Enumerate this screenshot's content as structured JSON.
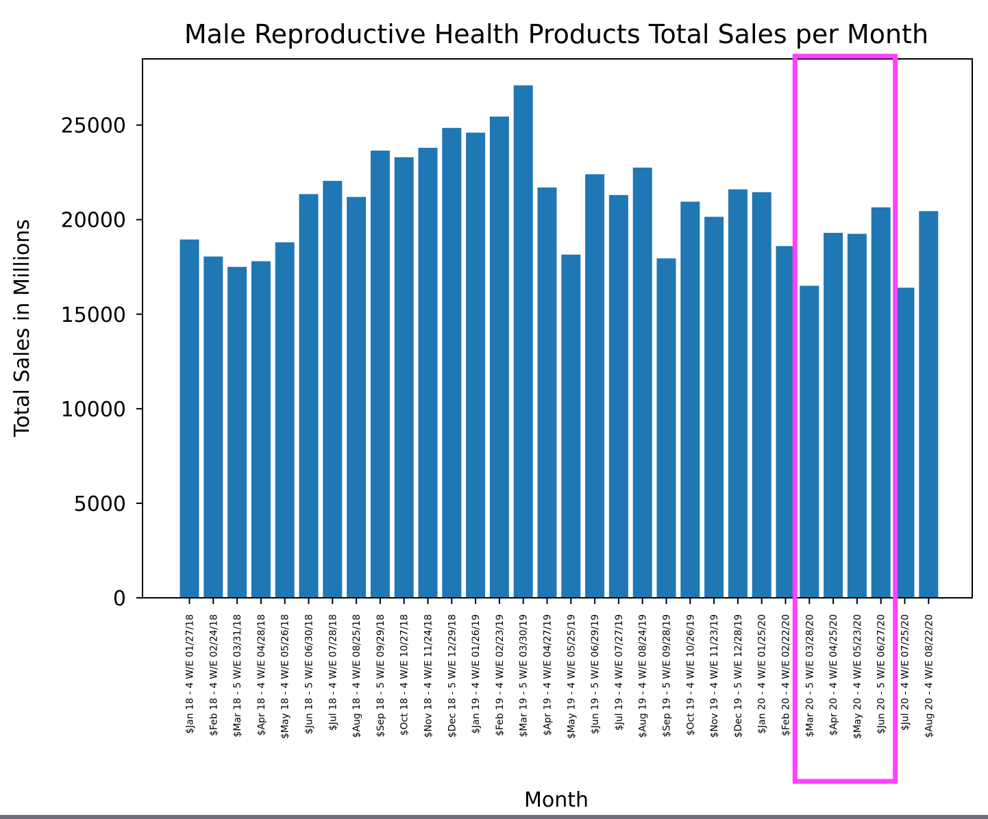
{
  "chart_data": {
    "type": "bar",
    "title": "Male Reproductive Health Products Total Sales per Month",
    "xlabel": "Month",
    "ylabel": "Total Sales in Millions",
    "ylim": [
      0,
      28500
    ],
    "yticks": [
      0,
      5000,
      10000,
      15000,
      20000,
      25000
    ],
    "grid": false,
    "legend": "none",
    "bar_color": "#1f77b4",
    "highlight_color": "#ff40ff",
    "highlight_range": [
      "$Mar 20 - 5 W/E 03/28/20",
      "$Jun 20 - 5 W/E 06/27/20"
    ],
    "categories": [
      "$Jan 18 - 4 W/E 01/27/18",
      "$Feb 18 - 4 W/E 02/24/18",
      "$Mar 18 - 5 W/E 03/31/18",
      "$Apr 18 - 4 W/E 04/28/18",
      "$May 18 - 4 W/E 05/26/18",
      "$Jun 18 - 5 W/E 06/30/18",
      "$Jul 18 - 4 W/E 07/28/18",
      "$Aug 18 - 4 W/E 08/25/18",
      "$Sep 18 - 5 W/E 09/29/18",
      "$Oct 18 - 4 W/E 10/27/18",
      "$Nov 18 - 4 W/E 11/24/18",
      "$Dec 18 - 5 W/E 12/29/18",
      "$Jan 19 - 4 W/E 01/26/19",
      "$Feb 19 - 4 W/E 02/23/19",
      "$Mar 19 - 5 W/E 03/30/19",
      "$Apr 19 - 4 W/E 04/27/19",
      "$May 19 - 4 W/E 05/25/19",
      "$Jun 19 - 5 W/E 06/29/19",
      "$Jul 19 - 4 W/E 07/27/19",
      "$Aug 19 - 4 W/E 08/24/19",
      "$Sep 19 - 5 W/E 09/28/19",
      "$Oct 19 - 4 W/E 10/26/19",
      "$Nov 19 - 4 W/E 11/23/19",
      "$Dec 19 - 5 W/E 12/28/19",
      "$Jan 20 - 4 W/E 01/25/20",
      "$Feb 20 - 4 W/E 02/22/20",
      "$Mar 20 - 5 W/E 03/28/20",
      "$Apr 20 - 4 W/E 04/25/20",
      "$May 20 - 4 W/E 05/23/20",
      "$Jun 20 - 5 W/E 06/27/20",
      "$Jul 20 - 4 W/E 07/25/20",
      "$Aug 20 - 4 W/E 08/22/20"
    ],
    "values": [
      18950,
      18050,
      17500,
      17800,
      18800,
      21350,
      22050,
      21200,
      23650,
      23300,
      23800,
      24850,
      24600,
      25450,
      27100,
      21700,
      18150,
      22400,
      21300,
      22750,
      17950,
      20950,
      20150,
      21600,
      21450,
      18600,
      16500,
      19300,
      19250,
      20650,
      16400,
      20450
    ]
  }
}
